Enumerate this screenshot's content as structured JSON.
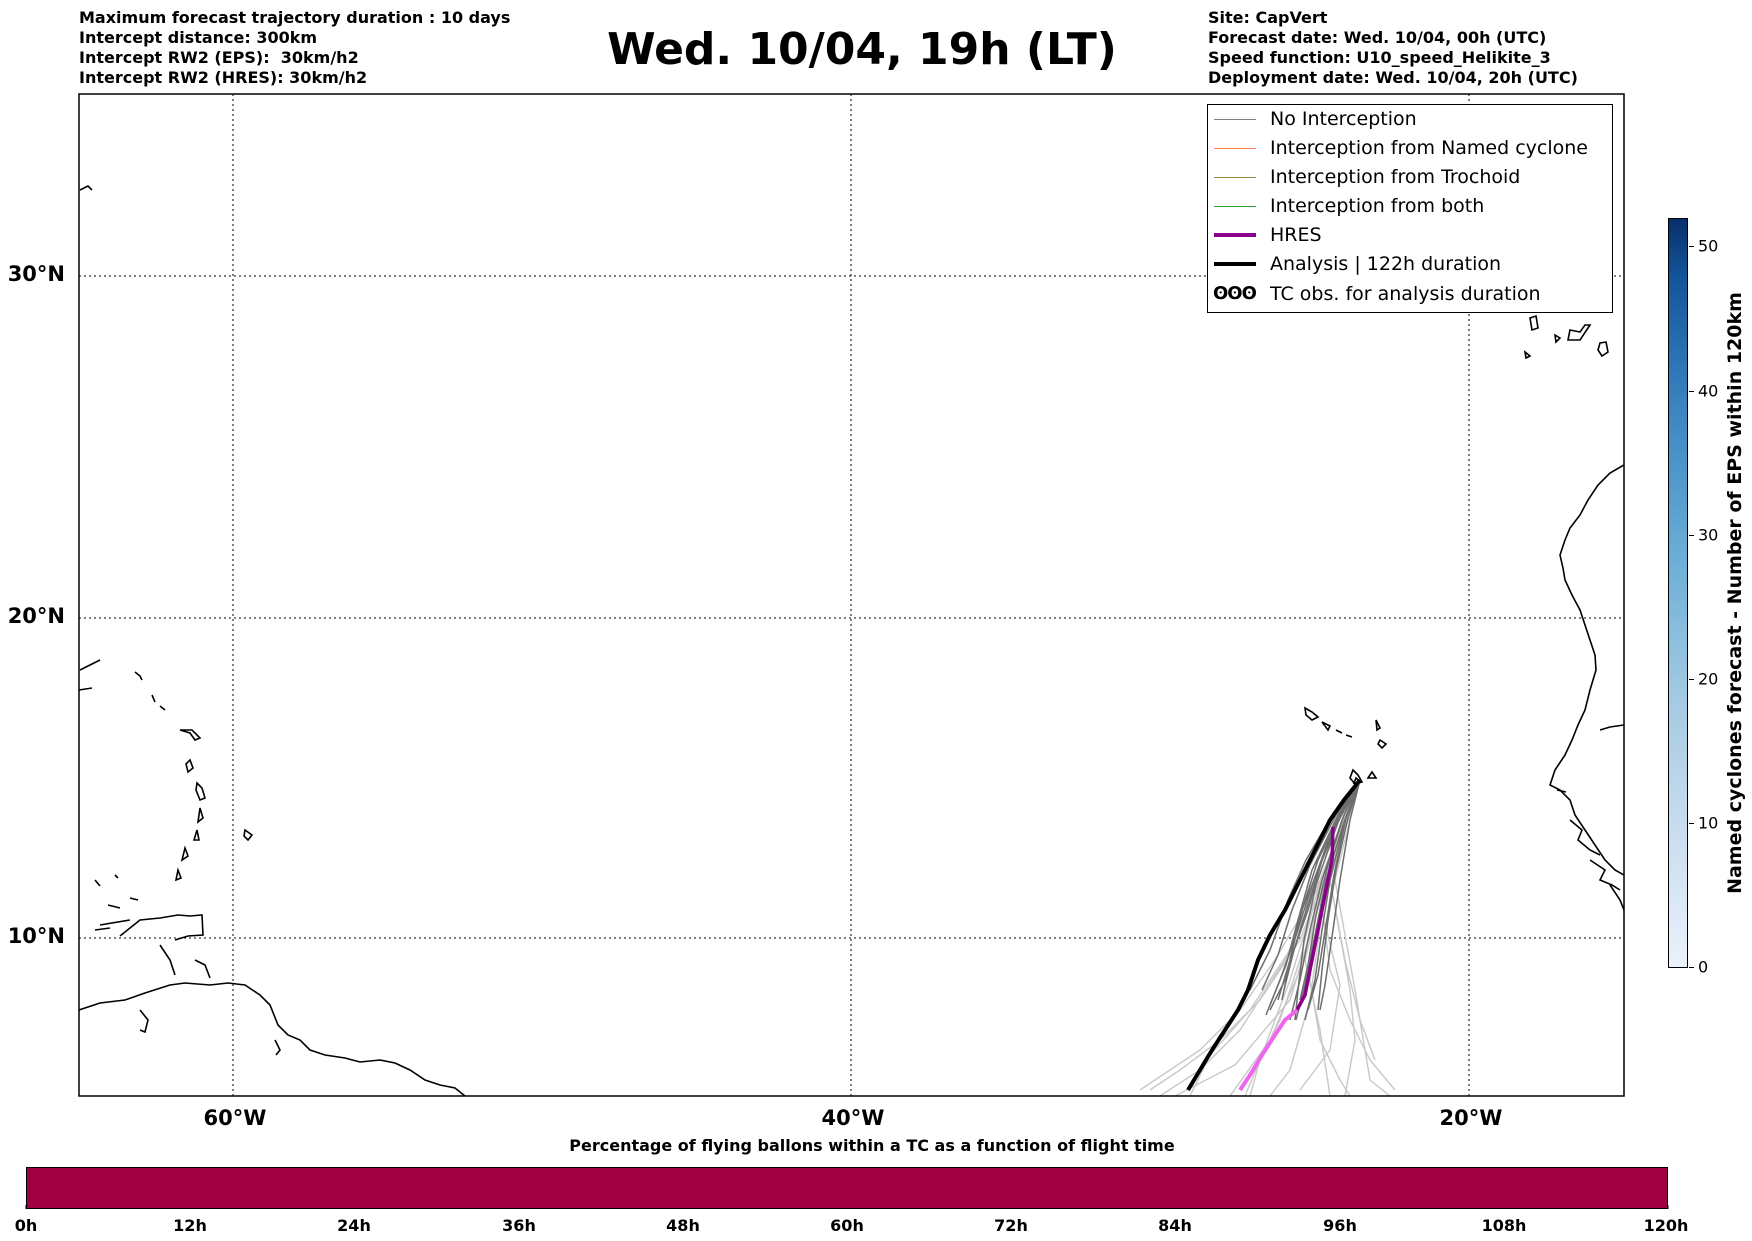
{
  "header": {
    "left_lines": [
      "Maximum forecast trajectory duration : 10 days",
      "Intercept distance: 300km",
      "Intercept RW2 (EPS):  30km/h2",
      "Intercept RW2 (HRES): 30km/h2"
    ],
    "title": "Wed. 10/04, 19h (LT)",
    "right_lines": [
      "Site: CapVert",
      "Forecast date: Wed. 10/04, 00h (UTC)",
      "Speed function: U10_speed_Helikite_3",
      "Deployment date: Wed. 10/04, 20h (UTC)"
    ]
  },
  "map": {
    "lat_labels": [
      "30°N",
      "20°N",
      "10°N"
    ],
    "lon_labels": [
      "60°W",
      "40°W",
      "20°W"
    ],
    "grid": "dotted"
  },
  "legend": {
    "items": [
      {
        "label": "No Interception",
        "color": "#808080",
        "style": "thin"
      },
      {
        "label": "Interception from Named cyclone",
        "color": "#ff7f50",
        "style": "thin"
      },
      {
        "label": "Interception from Trochoid",
        "color": "#9a8b3a",
        "style": "thin"
      },
      {
        "label": "Interception from both",
        "color": "#2ca02c",
        "style": "thin"
      },
      {
        "label": "HRES",
        "color": "#8b008b",
        "style": "thick"
      },
      {
        "label": "Analysis | 122h duration",
        "color": "#000000",
        "style": "thick"
      },
      {
        "label": "TC obs. for analysis duration",
        "symbol": "ʘʘʘ",
        "style": "symbol"
      }
    ]
  },
  "colorbar": {
    "title": "Named cyclones forecast - Number of EPS within 120km",
    "ticks": [
      "0",
      "10",
      "20",
      "30",
      "40",
      "50"
    ],
    "colors": [
      "#eaf2fb",
      "#08306b"
    ]
  },
  "bottom": {
    "title": "Percentage of flying ballons within a TC as a function of flight time",
    "ticks": [
      "0h",
      "12h",
      "24h",
      "36h",
      "48h",
      "60h",
      "72h",
      "84h",
      "96h",
      "108h",
      "120h"
    ],
    "bar_color": "#a00040"
  }
}
